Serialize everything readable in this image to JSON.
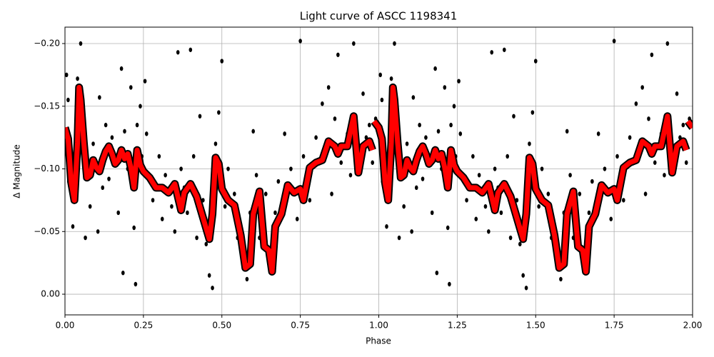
{
  "chart_data": {
    "type": "scatter",
    "title": "Light curve of ASCC 1198341",
    "x_label": "Phase",
    "y_label": "Δ Magnitude",
    "xlim": [
      0,
      2
    ],
    "xticks": [
      {
        "value": 0,
        "label": "0.00"
      },
      0.25,
      {
        "value": 0.5,
        "label": "0.50"
      },
      0.75,
      {
        "value": 1,
        "label": "1.00"
      },
      1.25,
      {
        "value": 1.5,
        "label": "1.50"
      },
      1.75,
      {
        "value": 2,
        "label": "2.00"
      }
    ],
    "ylim": [
      0.0165,
      -0.2131
    ],
    "yticks": [
      {
        "value": 0,
        "label": "0.00"
      },
      {
        "value": -0.05,
        "label": "−0.05"
      },
      {
        "value": -0.1,
        "label": "−0.10"
      },
      {
        "value": -0.15,
        "label": "−0.15"
      },
      {
        "value": -0.2,
        "label": "−0.20"
      }
    ],
    "grid": true,
    "series": [
      {
        "kind": "points",
        "color": "#000000",
        "x": [
          0.005,
          0.01,
          0.012,
          0.02,
          0.025,
          0.035,
          0.04,
          0.05,
          0.055,
          0.06,
          0.065,
          0.07,
          0.08,
          0.09,
          0.1,
          0.105,
          0.11,
          0.12,
          0.13,
          0.14,
          0.15,
          0.16,
          0.17,
          0.18,
          0.185,
          0.19,
          0.2,
          0.21,
          0.22,
          0.225,
          0.23,
          0.24,
          0.245,
          0.255,
          0.26,
          0.27,
          0.28,
          0.3,
          0.31,
          0.32,
          0.34,
          0.35,
          0.36,
          0.37,
          0.38,
          0.39,
          0.4,
          0.41,
          0.42,
          0.43,
          0.44,
          0.45,
          0.46,
          0.47,
          0.48,
          0.49,
          0.5,
          0.51,
          0.52,
          0.54,
          0.55,
          0.56,
          0.57,
          0.58,
          0.59,
          0.6,
          0.61,
          0.62,
          0.64,
          0.66,
          0.67,
          0.68,
          0.7,
          0.72,
          0.74,
          0.75,
          0.76,
          0.78,
          0.8,
          0.82,
          0.84,
          0.85,
          0.86,
          0.87,
          0.88,
          0.9,
          0.91,
          0.92,
          0.93,
          0.95,
          0.96,
          0.97,
          0.98,
          0.99,
          1.005,
          1.01,
          1.012,
          1.02,
          1.025,
          1.035,
          1.04,
          1.05,
          1.055,
          1.06,
          1.065,
          1.07,
          1.08,
          1.09,
          1.1,
          1.105,
          1.11,
          1.12,
          1.13,
          1.14,
          1.15,
          1.16,
          1.17,
          1.18,
          1.185,
          1.19,
          1.2,
          1.21,
          1.22,
          1.225,
          1.23,
          1.24,
          1.245,
          1.255,
          1.26,
          1.27,
          1.28,
          1.3,
          1.31,
          1.32,
          1.34,
          1.35,
          1.36,
          1.37,
          1.38,
          1.39,
          1.4,
          1.41,
          1.42,
          1.43,
          1.44,
          1.45,
          1.46,
          1.47,
          1.48,
          1.49,
          1.5,
          1.51,
          1.52,
          1.54,
          1.55,
          1.56,
          1.57,
          1.58,
          1.59,
          1.6,
          1.61,
          1.62,
          1.64,
          1.66,
          1.67,
          1.68,
          1.7,
          1.72,
          1.74,
          1.75,
          1.76,
          1.78,
          1.8,
          1.82,
          1.84,
          1.85,
          1.86,
          1.87,
          1.88,
          1.9,
          1.91,
          1.92,
          1.93,
          1.95,
          1.96,
          1.97,
          1.98,
          1.99
        ],
        "values": [
          -0.175,
          -0.155,
          -0.09,
          -0.08,
          -0.054,
          -0.11,
          -0.172,
          -0.2,
          -0.13,
          -0.117,
          -0.045,
          -0.095,
          -0.07,
          -0.12,
          -0.105,
          -0.05,
          -0.157,
          -0.085,
          -0.135,
          -0.092,
          -0.125,
          -0.105,
          -0.065,
          -0.18,
          -0.017,
          -0.13,
          -0.1,
          -0.165,
          -0.053,
          -0.008,
          -0.135,
          -0.15,
          -0.11,
          -0.17,
          -0.128,
          -0.09,
          -0.075,
          -0.11,
          -0.06,
          -0.095,
          -0.07,
          -0.05,
          -0.193,
          -0.1,
          -0.085,
          -0.065,
          -0.195,
          -0.11,
          -0.045,
          -0.142,
          -0.075,
          -0.04,
          -0.015,
          -0.005,
          -0.12,
          -0.145,
          -0.186,
          -0.07,
          -0.1,
          -0.08,
          -0.045,
          -0.055,
          -0.03,
          -0.012,
          -0.065,
          -0.13,
          -0.095,
          -0.045,
          -0.08,
          -0.03,
          -0.065,
          -0.09,
          -0.128,
          -0.1,
          -0.06,
          -0.202,
          -0.11,
          -0.075,
          -0.125,
          -0.152,
          -0.165,
          -0.08,
          -0.14,
          -0.191,
          -0.105,
          -0.128,
          -0.095,
          -0.2,
          -0.11,
          -0.16,
          -0.125,
          -0.135,
          -0.105,
          -0.14,
          -0.175,
          -0.155,
          -0.09,
          -0.08,
          -0.054,
          -0.11,
          -0.172,
          -0.2,
          -0.13,
          -0.117,
          -0.045,
          -0.095,
          -0.07,
          -0.12,
          -0.105,
          -0.05,
          -0.157,
          -0.085,
          -0.135,
          -0.092,
          -0.125,
          -0.105,
          -0.065,
          -0.18,
          -0.017,
          -0.13,
          -0.1,
          -0.165,
          -0.053,
          -0.008,
          -0.135,
          -0.15,
          -0.11,
          -0.17,
          -0.128,
          -0.09,
          -0.075,
          -0.11,
          -0.06,
          -0.095,
          -0.07,
          -0.05,
          -0.193,
          -0.1,
          -0.085,
          -0.065,
          -0.195,
          -0.11,
          -0.045,
          -0.142,
          -0.075,
          -0.04,
          -0.015,
          -0.005,
          -0.12,
          -0.145,
          -0.186,
          -0.07,
          -0.1,
          -0.08,
          -0.045,
          -0.055,
          -0.03,
          -0.012,
          -0.065,
          -0.13,
          -0.095,
          -0.045,
          -0.08,
          -0.03,
          -0.065,
          -0.09,
          -0.128,
          -0.1,
          -0.06,
          -0.202,
          -0.11,
          -0.075,
          -0.125,
          -0.152,
          -0.165,
          -0.08,
          -0.14,
          -0.191,
          -0.105,
          -0.128,
          -0.095,
          -0.2,
          -0.11,
          -0.16,
          -0.125,
          -0.135,
          -0.105,
          -0.14
        ]
      },
      {
        "kind": "line",
        "color": "#ff0000",
        "x": [
          0,
          0.01,
          0.02,
          0.03,
          0.04,
          0.045,
          0.05,
          0.06,
          0.07,
          0.08,
          0.09,
          0.1,
          0.11,
          0.12,
          0.13,
          0.14,
          0.15,
          0.16,
          0.17,
          0.18,
          0.19,
          0.2,
          0.21,
          0.22,
          0.23,
          0.24,
          0.25,
          0.27,
          0.29,
          0.31,
          0.33,
          0.35,
          0.37,
          0.38,
          0.4,
          0.42,
          0.44,
          0.46,
          0.47,
          0.48,
          0.49,
          0.5,
          0.52,
          0.54,
          0.56,
          0.575,
          0.59,
          0.6,
          0.62,
          0.635,
          0.65,
          0.66,
          0.67,
          0.69,
          0.71,
          0.73,
          0.75,
          0.76,
          0.78,
          0.8,
          0.82,
          0.84,
          0.86,
          0.87,
          0.88,
          0.9,
          0.92,
          0.935,
          0.95,
          0.97,
          0.98,
          null,
          0.985,
          1,
          1.01,
          1.02,
          1.03,
          1.04,
          1.045,
          1.05,
          1.06,
          1.07,
          1.08,
          1.09,
          1.1,
          1.11,
          1.12,
          1.13,
          1.14,
          1.15,
          1.16,
          1.17,
          1.18,
          1.19,
          1.2,
          1.21,
          1.22,
          1.23,
          1.24,
          1.25,
          1.27,
          1.29,
          1.31,
          1.33,
          1.35,
          1.37,
          1.38,
          1.4,
          1.42,
          1.44,
          1.46,
          1.47,
          1.48,
          1.49,
          1.5,
          1.52,
          1.54,
          1.56,
          1.575,
          1.59,
          1.6,
          1.62,
          1.635,
          1.65,
          1.66,
          1.67,
          1.69,
          1.71,
          1.73,
          1.75,
          1.76,
          1.78,
          1.8,
          1.82,
          1.84,
          1.86,
          1.87,
          1.88,
          1.9,
          1.92,
          1.935,
          1.95,
          1.97,
          1.98,
          null,
          1.985,
          2
        ],
        "values": [
          -0.133,
          -0.124,
          -0.089,
          -0.075,
          -0.121,
          -0.165,
          -0.155,
          -0.121,
          -0.093,
          -0.095,
          -0.107,
          -0.101,
          -0.098,
          -0.107,
          -0.114,
          -0.118,
          -0.112,
          -0.104,
          -0.107,
          -0.115,
          -0.108,
          -0.112,
          -0.101,
          -0.085,
          -0.115,
          -0.103,
          -0.098,
          -0.093,
          -0.085,
          -0.085,
          -0.081,
          -0.088,
          -0.067,
          -0.081,
          -0.088,
          -0.078,
          -0.061,
          -0.044,
          -0.064,
          -0.109,
          -0.104,
          -0.084,
          -0.075,
          -0.071,
          -0.047,
          -0.021,
          -0.024,
          -0.064,
          -0.082,
          -0.038,
          -0.035,
          -0.018,
          -0.054,
          -0.064,
          -0.087,
          -0.081,
          -0.084,
          -0.075,
          -0.101,
          -0.105,
          -0.107,
          -0.122,
          -0.118,
          -0.112,
          -0.118,
          -0.118,
          -0.142,
          -0.097,
          -0.118,
          -0.122,
          -0.115,
          null,
          -0.138,
          -0.133,
          -0.124,
          -0.089,
          -0.075,
          -0.121,
          -0.165,
          -0.155,
          -0.121,
          -0.093,
          -0.095,
          -0.107,
          -0.101,
          -0.098,
          -0.107,
          -0.114,
          -0.118,
          -0.112,
          -0.104,
          -0.107,
          -0.115,
          -0.108,
          -0.112,
          -0.101,
          -0.085,
          -0.115,
          -0.103,
          -0.098,
          -0.093,
          -0.085,
          -0.085,
          -0.081,
          -0.088,
          -0.067,
          -0.081,
          -0.088,
          -0.078,
          -0.061,
          -0.044,
          -0.064,
          -0.109,
          -0.104,
          -0.084,
          -0.075,
          -0.071,
          -0.047,
          -0.021,
          -0.024,
          -0.064,
          -0.082,
          -0.038,
          -0.035,
          -0.018,
          -0.054,
          -0.064,
          -0.087,
          -0.081,
          -0.084,
          -0.075,
          -0.101,
          -0.105,
          -0.107,
          -0.122,
          -0.118,
          -0.112,
          -0.118,
          -0.118,
          -0.142,
          -0.097,
          -0.118,
          -0.122,
          -0.115,
          null,
          -0.138,
          -0.133
        ]
      }
    ]
  }
}
